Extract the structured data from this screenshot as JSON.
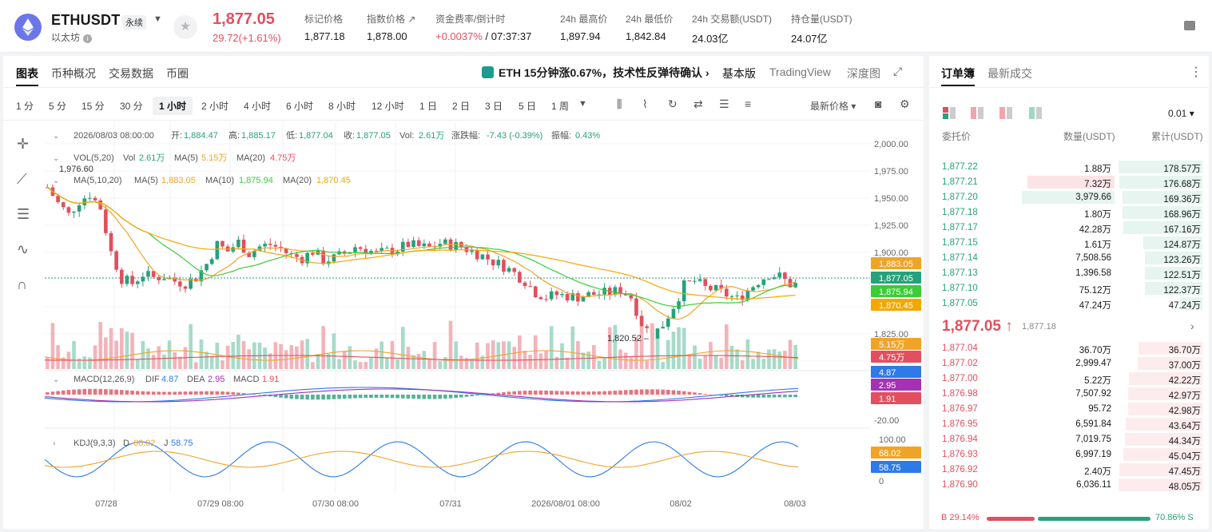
{
  "header": {
    "symbol": "ETHUSDT",
    "perp_label": "永续",
    "coin_name": "以太坊",
    "last_price": "1,877.05",
    "change": "29.72(+1.61%)",
    "stats": [
      {
        "label": "标记价格",
        "value": "1,877.18"
      },
      {
        "label": "指数价格 ↗",
        "value": "1,878.00"
      },
      {
        "label": "资金费率/倒计时",
        "value_red": "+0.0037%",
        "value": " / 07:37:37"
      },
      {
        "label": "24h 最高价",
        "value": "1,897.94"
      },
      {
        "label": "24h 最低价",
        "value": "1,842.84"
      },
      {
        "label": "24h 交易额(USDT)",
        "value": "24.03亿"
      },
      {
        "label": "持仓量(USDT)",
        "value": "24.07亿"
      }
    ]
  },
  "chart_tabs": [
    "图表",
    "币种概况",
    "交易数据",
    "币圈"
  ],
  "news": "ETH 15分钟涨0.67%，技术性反弹待确认 ›",
  "view_tabs": [
    "基本版",
    "TradingView",
    "深度图"
  ],
  "timeframes": [
    "1 分",
    "5 分",
    "15 分",
    "30 分",
    "1 小时",
    "2 小时",
    "4 小时",
    "6 小时",
    "8 小时",
    "12 小时",
    "1 日",
    "2 日",
    "3 日",
    "5 日",
    "1 周"
  ],
  "selected_timeframe": "1 小时",
  "price_mode": "最新价格",
  "legend": {
    "ohlc_line": "2026/08/03 08:00:00",
    "open_label": "开:",
    "open": "1,884.47",
    "high_label": "高:",
    "high": "1,885.17",
    "low_label": "低:",
    "low": "1,877.04",
    "close_label": "收:",
    "close": "1,877.05",
    "vol_label": "Vol:",
    "vol": "2.61万",
    "change_label": "涨跌幅:",
    "change": "-7.43 (-0.39%)",
    "amp_label": "振幅:",
    "amp": "0.43%",
    "vol_ind": "VOL(5,20)",
    "vol_v_label": "Vol",
    "vol_v": "2.61万",
    "vol_ma5_label": "MA(5)",
    "vol_ma5": "5.15万",
    "vol_ma20_label": "MA(20)",
    "vol_ma20": "4.75万",
    "ma_ind": "MA(5,10,20)",
    "ma5_label": "MA(5)",
    "ma5": "1,883.05",
    "ma10_label": "MA(10)",
    "ma10": "1,875.94",
    "ma20_label": "MA(20)",
    "ma20": "1,870.45",
    "macd_ind": "MACD(12,26,9)",
    "dif_label": "DIF",
    "dif": "4.87",
    "dea_label": "DEA",
    "dea": "2.95",
    "macd_label": "MACD",
    "macd": "1.91",
    "kdj_ind": "KDJ(9,3,3)",
    "d_label": "D",
    "d": "68.02",
    "j_label": "J",
    "j": "58.75"
  },
  "annotations": {
    "high": "1,976.60",
    "low": "1,820.52 –"
  },
  "chart_data": {
    "type": "candlestick",
    "x_ticks": [
      "07/28",
      "07/29 08:00",
      "07/30 08:00",
      "07/31",
      "2026/08/01 08:00",
      "08/02",
      "08/03"
    ],
    "y_ticks": [
      "2,000.00",
      "1,975.00",
      "1,950.00",
      "1,925.00",
      "1,900.00",
      "1,825.00"
    ],
    "macd_ticks": [
      "-20.00"
    ],
    "kdj_ticks": [
      "100.00",
      "0"
    ],
    "ylim": [
      1810,
      2000
    ],
    "close_path": [
      1962,
      1948,
      1938,
      1950,
      1956,
      1944,
      1905,
      1882,
      1878,
      1886,
      1883,
      1884,
      1880,
      1878,
      1883,
      1895,
      1912,
      1906,
      1914,
      1904,
      1910,
      1912,
      1908,
      1902,
      1900,
      1906,
      1898,
      1900,
      1904,
      1910,
      1908,
      1904,
      1906,
      1908,
      1912,
      1910,
      1909,
      1913,
      1912,
      1910,
      1906,
      1902,
      1897,
      1893,
      1887,
      1880,
      1870,
      1866,
      1868,
      1867,
      1866,
      1868,
      1869,
      1870,
      1872,
      1866,
      1843,
      1832,
      1842,
      1858,
      1876,
      1880,
      1874,
      1872,
      1868,
      1864,
      1872,
      1880,
      1886,
      1884,
      1877
    ],
    "tags": [
      {
        "label": "1,883.05",
        "color": "#f0a427"
      },
      {
        "label": "1,877.05",
        "color": "#26a17b"
      },
      {
        "label": "1,875.94",
        "color": "#3ccc38"
      },
      {
        "label": "1,870.45",
        "color": "#f5a700"
      },
      {
        "label": "5.15万",
        "color": "#f0a427"
      },
      {
        "label": "4.75万",
        "color": "#e24f5e"
      },
      {
        "label": "4.87",
        "color": "#2e7ae6"
      },
      {
        "label": "2.95",
        "color": "#a531b5"
      },
      {
        "label": "1.91",
        "color": "#e24f5e"
      },
      {
        "label": "68.02",
        "color": "#f0a427"
      },
      {
        "label": "58.75",
        "color": "#2e7ae6"
      }
    ]
  },
  "orderbook": {
    "tabs": [
      "订单簿",
      "最新成交"
    ],
    "precision": "0.01",
    "headers": [
      "委托价",
      "数量(USDT)",
      "累计(USDT)"
    ],
    "asks": [
      {
        "p": "1,877.22",
        "q": "1.88万",
        "t": "178.57万",
        "tf": 1.0,
        "qf": 0
      },
      {
        "p": "1,877.21",
        "q": "7.32万",
        "t": "176.68万",
        "tf": 0.99,
        "qf": 0.32
      },
      {
        "p": "1,877.20",
        "q": "3,979.66",
        "t": "169.36万",
        "tf": 0.95,
        "qf": 0.34
      },
      {
        "p": "1,877.18",
        "q": "1.80万",
        "t": "168.96万",
        "tf": 0.95,
        "qf": 0
      },
      {
        "p": "1,877.17",
        "q": "42.28万",
        "t": "167.16万",
        "tf": 0.94,
        "qf": 0
      },
      {
        "p": "1,877.15",
        "q": "1.61万",
        "t": "124.87万",
        "tf": 0.7,
        "qf": 0
      },
      {
        "p": "1,877.14",
        "q": "7,508.56",
        "t": "123.26万",
        "tf": 0.69,
        "qf": 0
      },
      {
        "p": "1,877.13",
        "q": "1,396.58",
        "t": "122.51万",
        "tf": 0.69,
        "qf": 0
      },
      {
        "p": "1,877.10",
        "q": "75.12万",
        "t": "122.37万",
        "tf": 0.69,
        "qf": 0
      },
      {
        "p": "1,877.05",
        "q": "47.24万",
        "t": "47.24万",
        "tf": 0.27,
        "qf": 0
      }
    ],
    "last": "1,877.05 ↑",
    "mark": "1,877.18",
    "bids": [
      {
        "p": "1,877.04",
        "q": "36.70万",
        "t": "36.70万",
        "tf": 0.76
      },
      {
        "p": "1,877.02",
        "q": "2,999.47",
        "t": "37.00万",
        "tf": 0.77
      },
      {
        "p": "1,877.00",
        "q": "5.22万",
        "t": "42.22万",
        "tf": 0.88
      },
      {
        "p": "1,876.98",
        "q": "7,507.92",
        "t": "42.97万",
        "tf": 0.89
      },
      {
        "p": "1,876.97",
        "q": "95.72",
        "t": "42.98万",
        "tf": 0.89
      },
      {
        "p": "1,876.95",
        "q": "6,591.84",
        "t": "43.64万",
        "tf": 0.91
      },
      {
        "p": "1,876.94",
        "q": "7,019.75",
        "t": "44.34万",
        "tf": 0.92
      },
      {
        "p": "1,876.93",
        "q": "6,997.19",
        "t": "45.04万",
        "tf": 0.94
      },
      {
        "p": "1,876.92",
        "q": "2.40万",
        "t": "47.45万",
        "tf": 0.99
      },
      {
        "p": "1,876.90",
        "q": "6,036.11",
        "t": "48.05万",
        "tf": 1.0
      }
    ],
    "buy_ratio": "B 29.14%",
    "sell_ratio": "70.86% S",
    "buy_fraction": 0.2914
  }
}
